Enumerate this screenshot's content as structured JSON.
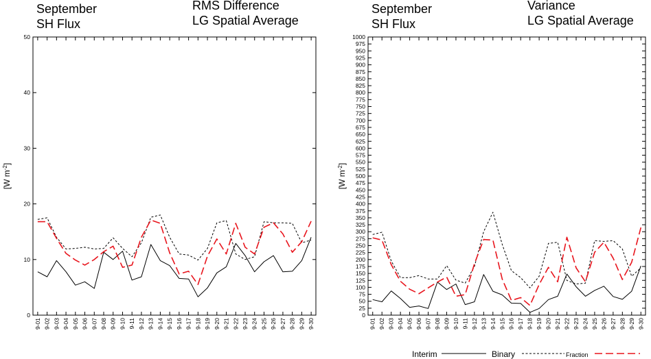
{
  "chart_data": [
    {
      "type": "line",
      "title_left": [
        "September",
        "SH Flux"
      ],
      "title_right": [
        "RMS Difference",
        "LG Spatial Average"
      ],
      "ylabel": "[W m",
      "ylabel_sup": "-2",
      "ylabel_end": "]",
      "ylim": [
        0,
        50
      ],
      "yticks": [
        "0",
        "10",
        "20",
        "30",
        "40",
        "50"
      ],
      "categories": [
        "9-01",
        "9-02",
        "9-03",
        "9-04",
        "9-05",
        "9-06",
        "9-07",
        "9-08",
        "9-09",
        "9-10",
        "9-11",
        "9-12",
        "9-13",
        "9-14",
        "9-15",
        "9-16",
        "9-17",
        "9-18",
        "9-19",
        "9-20",
        "9-21",
        "9-22",
        "9-23",
        "9-24",
        "9-25",
        "9-26",
        "9-27",
        "9-28",
        "9-29",
        "9-30"
      ],
      "series": [
        {
          "name": "Interim",
          "color": "#000000",
          "style": "solid",
          "values": [
            7.8,
            6.9,
            9.8,
            7.8,
            5.4,
            6.0,
            4.8,
            11.3,
            10.0,
            11.5,
            6.3,
            6.9,
            12.7,
            9.8,
            8.9,
            6.6,
            6.5,
            3.3,
            4.9,
            7.6,
            8.7,
            12.9,
            10.7,
            7.8,
            9.6,
            10.7,
            7.8,
            7.9,
            9.8,
            14.0
          ]
        },
        {
          "name": "Binary",
          "color": "#000000",
          "style": "dotted",
          "values": [
            17.2,
            17.5,
            14.0,
            11.9,
            12.0,
            12.2,
            11.9,
            12.0,
            13.9,
            12.0,
            10.5,
            13.0,
            17.6,
            18.0,
            14.0,
            11.0,
            10.8,
            9.9,
            12.0,
            16.6,
            17.0,
            11.0,
            10.0,
            10.5,
            16.8,
            16.6,
            16.6,
            16.5,
            13.0,
            13.5
          ]
        },
        {
          "name": "Fraction",
          "color": "#e8141c",
          "style": "dashed",
          "values": [
            16.8,
            16.8,
            13.8,
            11.1,
            9.9,
            9.0,
            10.0,
            11.4,
            12.4,
            8.6,
            9.0,
            14.0,
            17.1,
            16.5,
            11.2,
            7.4,
            7.9,
            5.5,
            10.6,
            13.7,
            11.0,
            16.5,
            12.2,
            11.0,
            15.8,
            16.6,
            14.6,
            11.3,
            13.2,
            16.9
          ]
        }
      ]
    },
    {
      "type": "line",
      "title_left": [
        "September",
        "SH Flux"
      ],
      "title_right": [
        "Variance",
        "LG Spatial Average"
      ],
      "ylabel": "[W m",
      "ylabel_sup": "-2",
      "ylabel_end": "]",
      "ylim": [
        0,
        1000
      ],
      "yticks": [
        "0",
        "25",
        "50",
        "75",
        "100",
        "125",
        "150",
        "175",
        "200",
        "225",
        "250",
        "275",
        "300",
        "325",
        "350",
        "375",
        "400",
        "425",
        "450",
        "475",
        "500",
        "525",
        "550",
        "575",
        "600",
        "625",
        "650",
        "675",
        "700",
        "725",
        "750",
        "775",
        "800",
        "825",
        "850",
        "875",
        "900",
        "925",
        "950",
        "975",
        "1000"
      ],
      "categories": [
        "9-01",
        "9-02",
        "9-03",
        "9-04",
        "9-05",
        "9-06",
        "9-07",
        "9-08",
        "9-09",
        "9-10",
        "9-11",
        "9-12",
        "9-13",
        "9-14",
        "9-15",
        "9-16",
        "9-17",
        "9-18",
        "9-19",
        "9-20",
        "9-21",
        "9-22",
        "9-23",
        "9-24",
        "9-25",
        "9-26",
        "9-27",
        "9-28",
        "9-29",
        "9-30"
      ],
      "series": [
        {
          "name": "Interim",
          "color": "#000000",
          "style": "solid",
          "values": [
            56,
            48,
            87,
            60,
            28,
            33,
            24,
            119,
            92,
            112,
            38,
            48,
            146,
            86,
            73,
            43,
            42,
            10,
            24,
            56,
            68,
            148,
            102,
            68,
            89,
            104,
            67,
            57,
            86,
            177
          ]
        },
        {
          "name": "Binary",
          "color": "#000000",
          "style": "dotted",
          "values": [
            290,
            298,
            195,
            135,
            135,
            142,
            130,
            130,
            178,
            126,
            115,
            175,
            300,
            370,
            255,
            160,
            135,
            98,
            140,
            258,
            262,
            125,
            112,
            115,
            268,
            265,
            268,
            238,
            140,
            170
          ]
        },
        {
          "name": "Fraction",
          "color": "#e8141c",
          "style": "dashed",
          "values": [
            278,
            270,
            182,
            122,
            93,
            77,
            98,
            119,
            137,
            68,
            74,
            185,
            272,
            270,
            130,
            53,
            63,
            35,
            110,
            172,
            120,
            280,
            170,
            120,
            226,
            262,
            205,
            128,
            190,
            315
          ]
        }
      ]
    }
  ],
  "legend": {
    "items": [
      {
        "label": "Interim",
        "size": "12px"
      },
      {
        "label": "Binary",
        "size": "12px"
      },
      {
        "label": "Fraction",
        "size": "9px"
      }
    ]
  }
}
